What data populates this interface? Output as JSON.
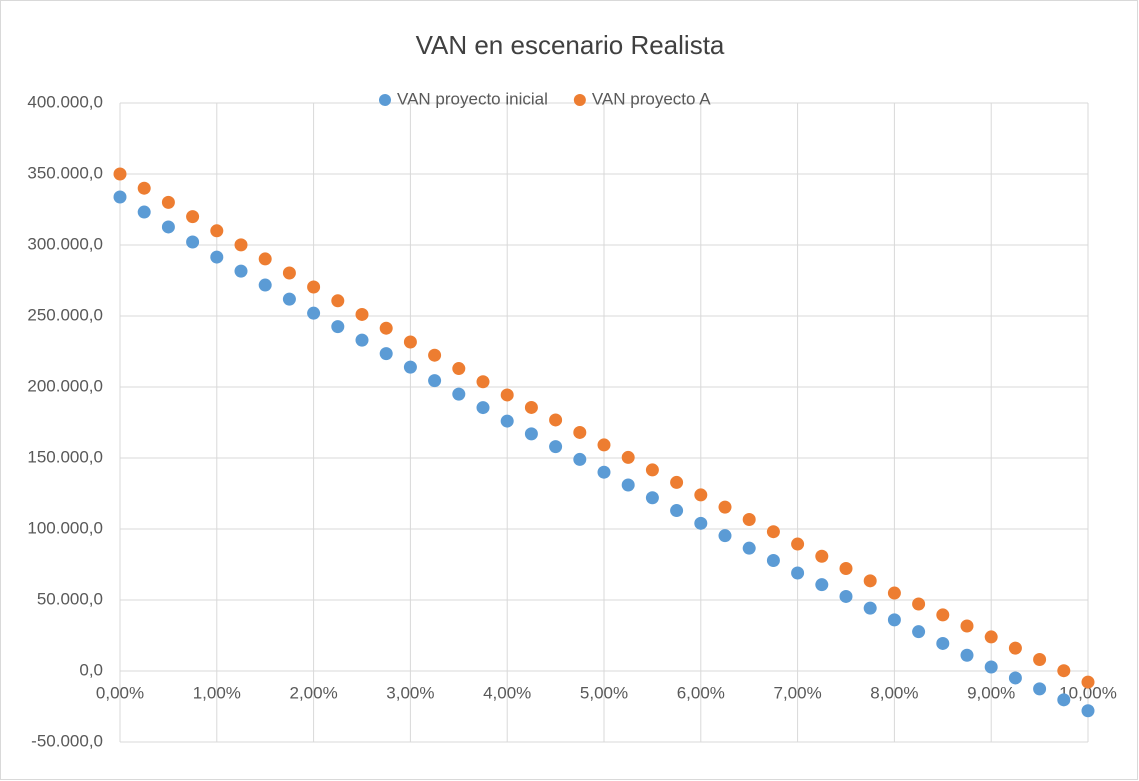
{
  "chart_data": {
    "type": "scatter",
    "title": "VAN en escenario Realista",
    "x": [
      0,
      0.25,
      0.5,
      0.75,
      1,
      1.25,
      1.5,
      1.75,
      2,
      2.25,
      2.5,
      2.75,
      3,
      3.25,
      3.5,
      3.75,
      4,
      4.25,
      4.5,
      4.75,
      5,
      5.25,
      5.5,
      5.75,
      6,
      6.25,
      6.5,
      6.75,
      7,
      7.25,
      7.5,
      7.75,
      8,
      8.25,
      8.5,
      8.75,
      9,
      9.25,
      9.5,
      9.75,
      10
    ],
    "series": [
      {
        "name": "VAN proyecto inicial",
        "color": "#5b9bd5",
        "values": [
          333800,
          323200,
          312700,
          302100,
          291500,
          281600,
          271800,
          261900,
          252000,
          242500,
          233000,
          223500,
          214000,
          204500,
          195000,
          185500,
          176000,
          167000,
          158000,
          149000,
          140000,
          131000,
          122000,
          113000,
          104000,
          95300,
          86500,
          77800,
          69000,
          60800,
          52500,
          44300,
          36000,
          27700,
          19400,
          11100,
          2800,
          -4900,
          -12600,
          -20300,
          -28000
        ]
      },
      {
        "name": "VAN proyecto A",
        "color": "#ed7d31",
        "values": [
          350000,
          340000,
          330000,
          320000,
          310000,
          300100,
          290200,
          280300,
          270400,
          260700,
          251100,
          241400,
          231700,
          222400,
          213000,
          203700,
          194400,
          185600,
          176800,
          168000,
          159200,
          150400,
          141600,
          132800,
          124000,
          115400,
          106700,
          98100,
          89400,
          80800,
          72200,
          63500,
          54900,
          47200,
          39500,
          31700,
          24000,
          16100,
          8100,
          200,
          -7800
        ]
      }
    ],
    "xlim": [
      0,
      10
    ],
    "xticks": [
      {
        "value": 0,
        "label": "0,00%"
      },
      {
        "value": 1,
        "label": "1,00%"
      },
      {
        "value": 2,
        "label": "2,00%"
      },
      {
        "value": 3,
        "label": "3,00%"
      },
      {
        "value": 4,
        "label": "4,00%"
      },
      {
        "value": 5,
        "label": "5,00%"
      },
      {
        "value": 6,
        "label": "6,00%"
      },
      {
        "value": 7,
        "label": "7,00%"
      },
      {
        "value": 8,
        "label": "8,00%"
      },
      {
        "value": 9,
        "label": "9,00%"
      },
      {
        "value": 10,
        "label": "10,00%"
      }
    ],
    "ylim": [
      -50000,
      400000
    ],
    "yticks": [
      {
        "value": -50000,
        "label": "-50.000,0"
      },
      {
        "value": 0,
        "label": "0,0"
      },
      {
        "value": 50000,
        "label": "50.000,0"
      },
      {
        "value": 100000,
        "label": "100.000,0"
      },
      {
        "value": 150000,
        "label": "150.000,0"
      },
      {
        "value": 200000,
        "label": "200.000,0"
      },
      {
        "value": 250000,
        "label": "250.000,0"
      },
      {
        "value": 300000,
        "label": "300.000,0"
      },
      {
        "value": 350000,
        "label": "350.000,0"
      },
      {
        "value": 400000,
        "label": "400.000,0"
      }
    ],
    "grid": true,
    "legend": "top"
  }
}
